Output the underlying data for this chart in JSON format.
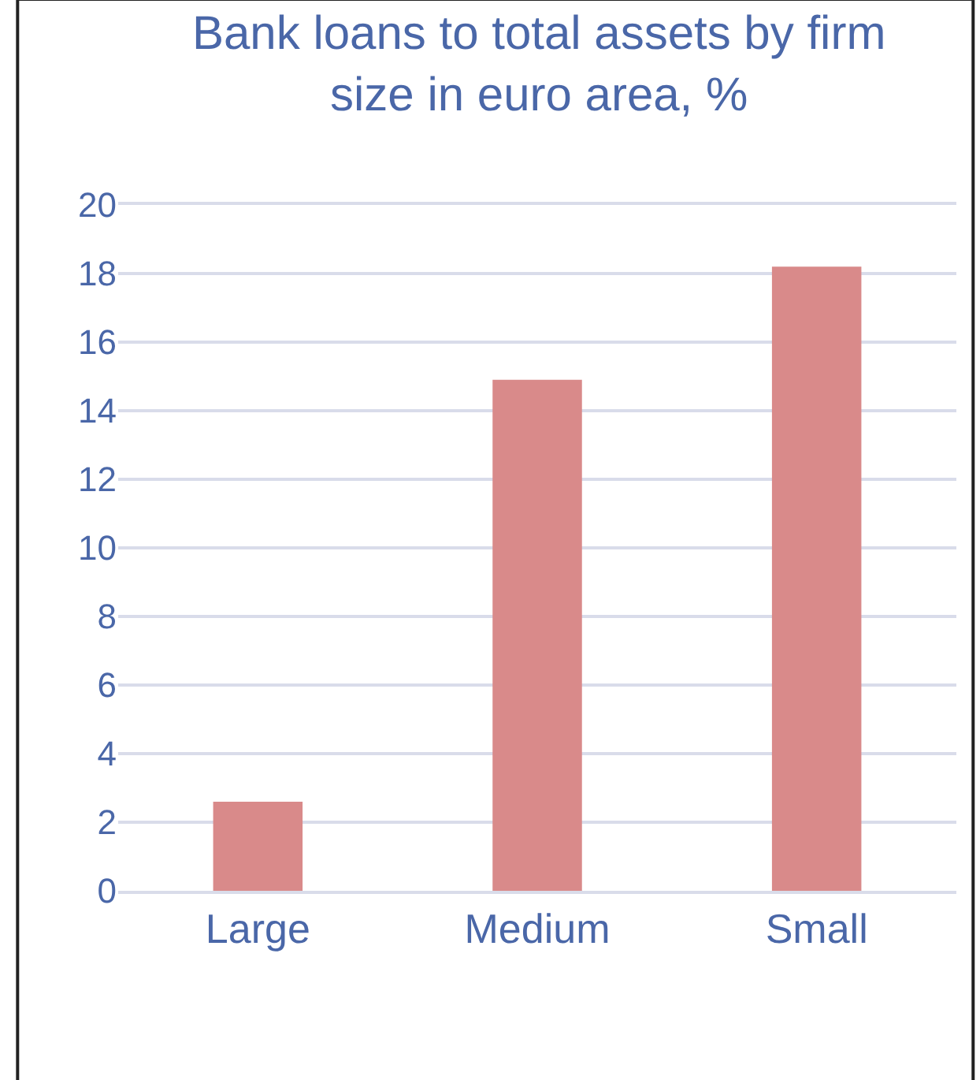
{
  "chart_data": {
    "type": "bar",
    "title": "Bank loans to total assets by firm size in euro area, %",
    "categories": [
      "Large",
      "Medium",
      "Small"
    ],
    "values": [
      2.6,
      14.9,
      18.2
    ],
    "color": "#d98a8a",
    "ylim": [
      0,
      20
    ],
    "yticks": [
      0,
      2,
      4,
      6,
      8,
      10,
      12,
      14,
      16,
      18,
      20
    ],
    "grid": "y"
  }
}
